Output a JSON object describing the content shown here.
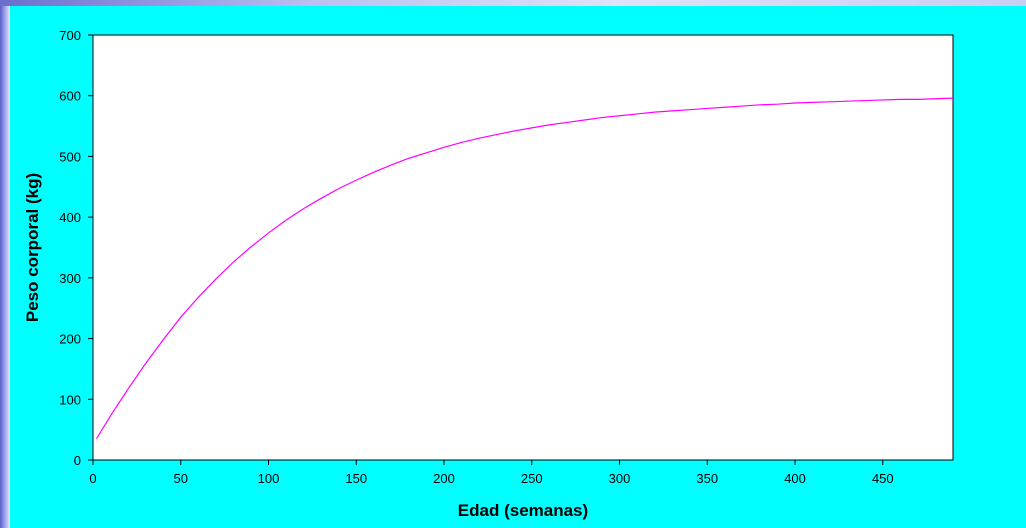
{
  "chart_data": {
    "type": "line",
    "title": "",
    "xlabel": "Edad (semanas)",
    "ylabel": "Peso corporal (kg)",
    "xlim": [
      0,
      490
    ],
    "ylim": [
      0,
      700
    ],
    "x_ticks": [
      0,
      50,
      100,
      150,
      200,
      250,
      300,
      350,
      400,
      450
    ],
    "y_ticks": [
      0,
      100,
      200,
      300,
      400,
      500,
      600,
      700
    ],
    "grid": false,
    "legend": "none",
    "series": [
      {
        "color": "#ff00ff",
        "x": [
          2,
          10,
          20,
          30,
          40,
          50,
          60,
          70,
          80,
          90,
          100,
          110,
          120,
          130,
          140,
          150,
          160,
          170,
          180,
          190,
          200,
          210,
          220,
          230,
          240,
          250,
          260,
          270,
          280,
          290,
          300,
          310,
          320,
          330,
          340,
          350,
          360,
          370,
          380,
          390,
          400,
          410,
          420,
          430,
          440,
          450,
          460,
          470,
          480,
          490
        ],
        "y": [
          35,
          73,
          117,
          159,
          198,
          235,
          268,
          298,
          326,
          351,
          374,
          395,
          414,
          431,
          447,
          461,
          474,
          486,
          497,
          506,
          515,
          523,
          530,
          536,
          542,
          547,
          552,
          556,
          560,
          564,
          567,
          570,
          573,
          575,
          577,
          579,
          581,
          583,
          585,
          586,
          588,
          589,
          590,
          591,
          592,
          593,
          594,
          594,
          595,
          596
        ]
      }
    ]
  }
}
